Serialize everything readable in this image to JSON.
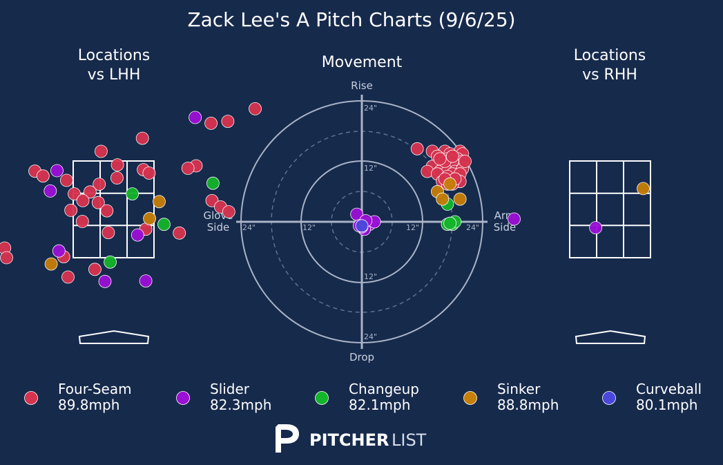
{
  "title": "Zack Lee's A Pitch Charts (9/6/25)",
  "panels": {
    "left_title_line1": "Locations",
    "left_title_line2": "vs LHH",
    "center_title": "Movement",
    "right_title_line1": "Locations",
    "right_title_line2": "vs RHH"
  },
  "movement_axes": {
    "top": "Rise",
    "bottom": "Drop",
    "left_line1": "Glove",
    "left_line2": "Side",
    "right_line1": "Arm",
    "right_line2": "Side",
    "ring_labels": [
      "12\"",
      "24\""
    ]
  },
  "legend": [
    {
      "name": "Four-Seam",
      "speed": "89.8mph",
      "color": "#d7334f"
    },
    {
      "name": "Slider",
      "speed": "82.3mph",
      "color": "#9b0fd6"
    },
    {
      "name": "Changeup",
      "speed": "82.1mph",
      "color": "#13b52a"
    },
    {
      "name": "Sinker",
      "speed": "88.8mph",
      "color": "#c67f08"
    },
    {
      "name": "Curveball",
      "speed": "80.1mph",
      "color": "#4a48dc"
    }
  ],
  "logo": {
    "bold": "PITCHER",
    "light": "LIST"
  },
  "chart_data": [
    {
      "type": "scatter",
      "title": "Locations vs LHH",
      "units": "feet (catcher view)",
      "series": [
        {
          "name": "Four-Seam",
          "points": [
            [
              2.95,
              4.58
            ],
            [
              2.03,
              4.28
            ],
            [
              2.38,
              4.32
            ],
            [
              0.6,
              3.97
            ],
            [
              -0.26,
              3.7
            ],
            [
              0.08,
              3.42
            ],
            [
              0.62,
              3.32
            ],
            [
              0.74,
              3.25
            ],
            [
              -1.64,
              3.29
            ],
            [
              -0.3,
              3.02
            ],
            [
              -0.32,
              2.64
            ],
            [
              -0.82,
              2.82
            ],
            [
              0.07,
              3.15
            ],
            [
              -1.47,
              3.19
            ],
            [
              1.72,
              3.4
            ],
            [
              1.55,
              3.35
            ],
            [
              -0.98,
              3.1
            ],
            [
              -0.49,
              2.86
            ],
            [
              -0.64,
              2.68
            ],
            [
              -0.14,
              2.47
            ],
            [
              -0.89,
              2.48
            ],
            [
              -0.65,
              2.25
            ],
            [
              0.67,
              2.09
            ],
            [
              1.37,
              2.01
            ],
            [
              -0.11,
              2.02
            ],
            [
              -2.27,
              1.7
            ],
            [
              -2.23,
              1.5
            ],
            [
              -1.04,
              1.52
            ],
            [
              -0.39,
              1.26
            ],
            [
              -0.95,
              1.1
            ],
            [
              2.05,
              2.68
            ],
            [
              2.23,
              2.55
            ],
            [
              2.4,
              2.45
            ]
          ]
        },
        {
          "name": "Slider",
          "points": [
            [
              1.7,
              4.4
            ],
            [
              -1.18,
              3.3
            ],
            [
              -1.32,
              2.88
            ],
            [
              0.5,
              1.97
            ],
            [
              -1.14,
              1.64
            ],
            [
              -0.18,
              1.01
            ],
            [
              0.67,
              1.02
            ]
          ]
        },
        {
          "name": "Changeup",
          "points": [
            [
              2.07,
              3.04
            ],
            [
              0.39,
              2.82
            ],
            [
              1.05,
              2.19
            ],
            [
              -0.07,
              1.41
            ]
          ]
        },
        {
          "name": "Sinker",
          "points": [
            [
              0.95,
              2.66
            ],
            [
              0.75,
              2.31
            ],
            [
              -1.3,
              1.37
            ]
          ]
        },
        {
          "name": "Curveball",
          "points": []
        }
      ]
    },
    {
      "type": "scatter",
      "title": "Movement",
      "xlabel_left": "Glove Side",
      "xlabel_right": "Arm Side",
      "ylabel_top": "Rise",
      "ylabel_bottom": "Drop",
      "units": "inches",
      "xlim": [
        -24,
        24
      ],
      "ylim": [
        -24,
        24
      ],
      "series": [
        {
          "name": "Four-Seam",
          "points": [
            [
              11,
              14.5
            ],
            [
              14,
              14
            ],
            [
              16.5,
              14
            ],
            [
              19.5,
              14
            ],
            [
              20,
              13.5
            ],
            [
              17.5,
              13.5
            ],
            [
              15,
              13
            ],
            [
              17,
              12.5
            ],
            [
              19,
              12.5
            ],
            [
              20,
              12
            ],
            [
              18,
              12
            ],
            [
              16,
              11.5
            ],
            [
              14,
              11
            ],
            [
              16,
              10.5
            ],
            [
              15.5,
              10
            ],
            [
              17,
              10
            ],
            [
              18.5,
              10
            ],
            [
              20,
              10.5
            ],
            [
              18,
              9.5
            ],
            [
              19.5,
              9.5
            ],
            [
              13,
              10
            ],
            [
              15,
              9.5
            ],
            [
              17,
              9
            ],
            [
              18.5,
              8.5
            ],
            [
              19.5,
              8
            ],
            [
              16,
              8
            ],
            [
              17,
              7.5
            ],
            [
              18,
              7.5
            ],
            [
              18.5,
              8.5
            ],
            [
              16.5,
              8.5
            ],
            [
              20.5,
              12
            ],
            [
              16.5,
              12
            ],
            [
              15.5,
              12.5
            ],
            [
              18,
              13
            ]
          ]
        },
        {
          "name": "Slider",
          "points": [
            [
              -1,
              1.5
            ],
            [
              1,
              -0.5
            ],
            [
              1.5,
              -0.5
            ],
            [
              2.5,
              0
            ],
            [
              0.5,
              -1.5
            ],
            [
              0,
              -1
            ],
            [
              -0.5,
              -0.8
            ],
            [
              0.8,
              0.2
            ]
          ]
        },
        {
          "name": "Changeup",
          "points": [
            [
              18,
              -0.5
            ],
            [
              17,
              -0.5
            ],
            [
              18.5,
              0
            ],
            [
              17.5,
              -0.3
            ],
            [
              17,
              3.5
            ]
          ]
        },
        {
          "name": "Sinker",
          "points": [
            [
              17.5,
              7.5
            ],
            [
              15,
              6
            ],
            [
              16,
              4.5
            ],
            [
              19.5,
              4.5
            ]
          ]
        },
        {
          "name": "Curveball",
          "points": [
            [
              0,
              -0.8
            ]
          ]
        }
      ]
    },
    {
      "type": "scatter",
      "title": "Locations vs RHH",
      "units": "feet (catcher view)",
      "series": [
        {
          "name": "Four-Seam",
          "points": []
        },
        {
          "name": "Slider",
          "points": [
            [
              -0.3,
              2.12
            ],
            [
              -2.0,
              2.3
            ]
          ]
        },
        {
          "name": "Changeup",
          "points": []
        },
        {
          "name": "Sinker",
          "points": [
            [
              0.69,
              2.93
            ]
          ]
        },
        {
          "name": "Curveball",
          "points": []
        }
      ]
    }
  ]
}
